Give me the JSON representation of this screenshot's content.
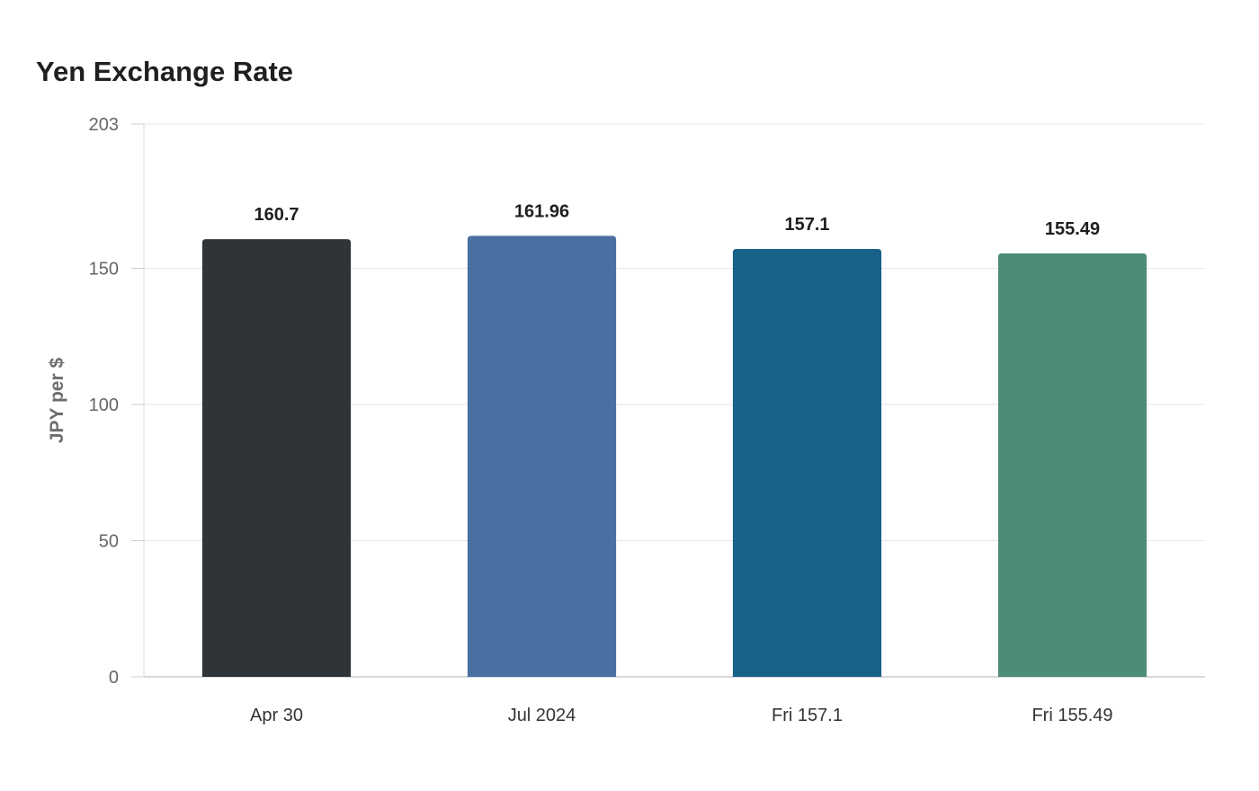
{
  "chart_data": {
    "type": "bar",
    "title": "Yen Exchange Rate",
    "xlabel": "",
    "ylabel": "JPY per $",
    "categories": [
      "Apr 30",
      "Jul 2024",
      "Fri 157.1",
      "Fri 155.49"
    ],
    "values": [
      160.7,
      161.96,
      157.1,
      155.49
    ],
    "data_labels": [
      "160.7",
      "161.96",
      "157.1",
      "155.49"
    ],
    "colors": [
      "#2e3437",
      "#4a6fa3",
      "#186188",
      "#4e8c7a"
    ],
    "ylim": [
      0,
      203
    ],
    "yticks": [
      0,
      50,
      100,
      150,
      203
    ],
    "grid": true,
    "legend": "none"
  }
}
